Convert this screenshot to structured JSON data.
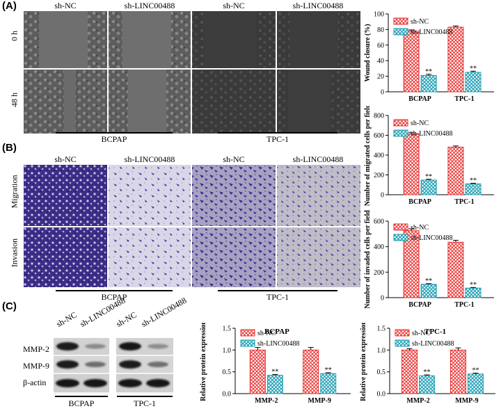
{
  "panels": {
    "A": {
      "letter": "(A)",
      "columns": [
        "sh-NC",
        "sh-LINC00488",
        "sh-NC",
        "sh-LINC00488"
      ],
      "rows": [
        "0 h",
        "48 h"
      ],
      "groups": [
        "BCPAP",
        "TPC-1"
      ]
    },
    "B": {
      "letter": "(B)",
      "columns": [
        "sh-NC",
        "sh-LINC00488",
        "sh-NC",
        "sh-LINC00488"
      ],
      "rows": [
        "Migration",
        "Invasion"
      ],
      "groups": [
        "BCPAP",
        "TPC-1"
      ]
    },
    "C": {
      "letter": "(C)",
      "columns": [
        "sh-NC",
        "sh-LINC00488",
        "sh-NC",
        "sh-LINC00488"
      ],
      "proteins": [
        "MMP-2",
        "MMP-9",
        "β-actin"
      ],
      "groups": [
        "BCPAP",
        "TPC-1"
      ]
    }
  },
  "colors": {
    "sh_nc": "#e8312f",
    "sh_linc": "#1f9fb3"
  },
  "chart_data": [
    {
      "id": "wound",
      "type": "bar",
      "title": "",
      "ylabel": "Wound closure (%)",
      "categories": [
        "BCPAP",
        "TPC-1"
      ],
      "ylim": [
        0,
        100
      ],
      "yticks": [
        0,
        20,
        40,
        60,
        80,
        100
      ],
      "series": [
        {
          "name": "sh-NC",
          "values": [
            78,
            83
          ],
          "errors": [
            1.5,
            1.5
          ]
        },
        {
          "name": "sh-LINC00488",
          "values": [
            21,
            25
          ],
          "errors": [
            1.5,
            1.5
          ],
          "annotation": "**"
        }
      ],
      "legend": "top-left"
    },
    {
      "id": "migrated",
      "type": "bar",
      "title": "",
      "ylabel": "Number of migrated cells per field",
      "categories": [
        "BCPAP",
        "TPC-1"
      ],
      "ylim": [
        0,
        800
      ],
      "yticks": [
        0,
        200,
        400,
        600,
        800
      ],
      "series": [
        {
          "name": "sh-NC",
          "values": [
            615,
            480
          ],
          "errors": [
            15,
            12
          ]
        },
        {
          "name": "sh-LINC00488",
          "values": [
            148,
            110
          ],
          "errors": [
            8,
            6
          ],
          "annotation": "**"
        }
      ],
      "legend": "top-left"
    },
    {
      "id": "invaded",
      "type": "bar",
      "title": "",
      "ylabel": "Number of invaded cells per field",
      "categories": [
        "BCPAP",
        "TPC-1"
      ],
      "ylim": [
        0,
        600
      ],
      "yticks": [
        0,
        200,
        400,
        600
      ],
      "series": [
        {
          "name": "sh-NC",
          "values": [
            525,
            435
          ],
          "errors": [
            15,
            15
          ]
        },
        {
          "name": "sh-LINC00488",
          "values": [
            105,
            75
          ],
          "errors": [
            5,
            5
          ],
          "annotation": "**"
        }
      ],
      "legend": "top-left"
    },
    {
      "id": "protein_bcpap",
      "type": "bar",
      "title": "BCPAP",
      "ylabel": "Relative protein expression",
      "categories": [
        "MMP-2",
        "MMP-9"
      ],
      "ylim": [
        0,
        1.5
      ],
      "yticks": [
        0.0,
        0.5,
        1.0,
        1.5
      ],
      "series": [
        {
          "name": "sh-NC",
          "values": [
            1.0,
            1.0
          ],
          "errors": [
            0.06,
            0.06
          ]
        },
        {
          "name": "sh-LINC00488",
          "values": [
            0.42,
            0.46
          ],
          "errors": [
            0.02,
            0.02
          ],
          "annotation": "**"
        }
      ],
      "legend": "top-left"
    },
    {
      "id": "protein_tpc1",
      "type": "bar",
      "title": "TPC-1",
      "ylabel": "Relative protein expression",
      "categories": [
        "MMP-2",
        "MMP-9"
      ],
      "ylim": [
        0,
        1.5
      ],
      "yticks": [
        0.0,
        0.5,
        1.0,
        1.5
      ],
      "series": [
        {
          "name": "sh-NC",
          "values": [
            1.0,
            1.0
          ],
          "errors": [
            0.03,
            0.05
          ]
        },
        {
          "name": "sh-LINC00488",
          "values": [
            0.41,
            0.45
          ],
          "errors": [
            0.02,
            0.02
          ],
          "annotation": "**"
        }
      ],
      "legend": "top-left"
    }
  ]
}
